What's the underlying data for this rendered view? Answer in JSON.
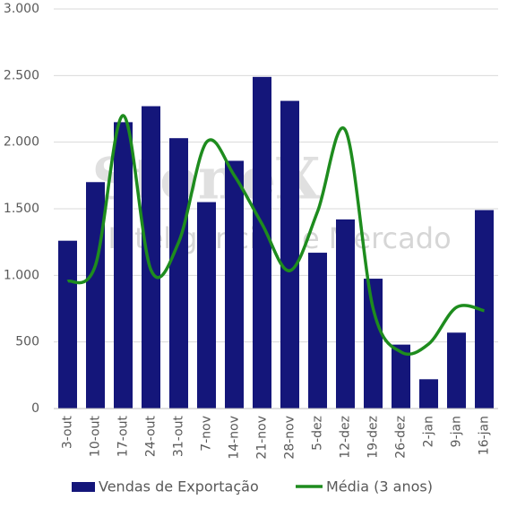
{
  "chart_data": {
    "type": "bar-line",
    "watermark": [
      "StoneX",
      "Inteligência de Mercado"
    ],
    "categories": [
      "3-out",
      "10-out",
      "17-out",
      "24-out",
      "31-out",
      "7-nov",
      "14-nov",
      "21-nov",
      "28-nov",
      "5-dez",
      "12-dez",
      "19-dez",
      "26-dez",
      "2-jan",
      "9-jan",
      "16-jan"
    ],
    "series": [
      {
        "name": "Vendas de Exportação",
        "type": "bar",
        "color": "#14167a",
        "values": [
          1260,
          1700,
          2150,
          2270,
          2030,
          1550,
          1860,
          2490,
          2310,
          1170,
          1420,
          975,
          480,
          220,
          570,
          1490
        ]
      },
      {
        "name": "Média (3 anos)",
        "type": "line",
        "color": "#1e8c1e",
        "values": [
          955,
          1075,
          2200,
          1040,
          1250,
          2000,
          1750,
          1385,
          1035,
          1480,
          2090,
          750,
          425,
          485,
          760,
          735
        ]
      }
    ],
    "ylim": [
      0,
      3000
    ],
    "yticks": [
      0,
      500,
      {
        "value": 1000,
        "label": "1.000"
      },
      {
        "value": 1500,
        "label": "1.500"
      },
      {
        "value": 2000,
        "label": "2.000"
      },
      {
        "value": 2500,
        "label": "2.500"
      },
      {
        "value": 3000,
        "label": "3.000"
      }
    ],
    "grid": true,
    "legend": "bottom"
  }
}
